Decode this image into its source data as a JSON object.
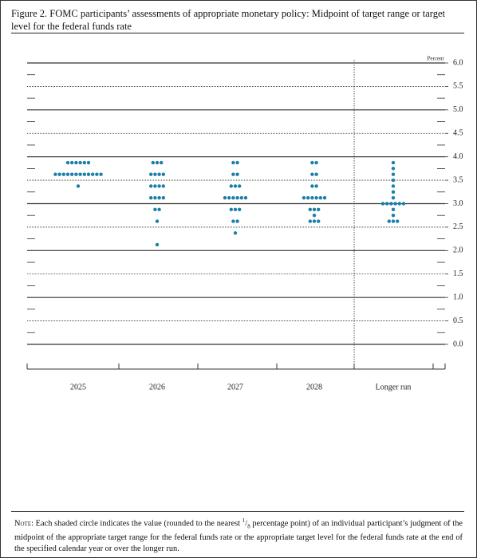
{
  "chart_data": {
    "type": "dot",
    "title": "Figure 2. FOMC participants’ assessments of appropriate monetary policy: Midpoint of target range or target level for the federal funds rate",
    "unit_label": "Percent",
    "categories": [
      "2025",
      "2026",
      "2027",
      "2028",
      "Longer run"
    ],
    "dots": [
      {
        "values": [
          3.875,
          3.625,
          3.375
        ],
        "counts": [
          6,
          12,
          1
        ]
      },
      {
        "values": [
          3.875,
          3.625,
          3.375,
          3.125,
          2.875,
          2.625,
          2.125
        ],
        "counts": [
          3,
          4,
          4,
          4,
          2,
          1,
          1
        ]
      },
      {
        "values": [
          3.875,
          3.625,
          3.375,
          3.125,
          2.875,
          2.625,
          2.375
        ],
        "counts": [
          2,
          2,
          3,
          6,
          3,
          2,
          1
        ]
      },
      {
        "values": [
          3.875,
          3.625,
          3.375,
          3.125,
          2.875,
          2.75,
          2.625
        ],
        "counts": [
          2,
          2,
          2,
          6,
          3,
          1,
          3
        ]
      },
      {
        "values": [
          3.875,
          3.75,
          3.625,
          3.5,
          3.375,
          3.25,
          3.125,
          3,
          2.875,
          2.75,
          2.625
        ],
        "counts": [
          1,
          1,
          1,
          1,
          1,
          1,
          1,
          6,
          1,
          1,
          3
        ]
      }
    ],
    "color": "#1b7fa8",
    "ylim": [
      0,
      6
    ],
    "yticks": [
      {
        "value": 0,
        "label": "0.0"
      },
      0.5,
      {
        "value": 1,
        "label": "1.0"
      },
      1.5,
      {
        "value": 2,
        "label": "2.0"
      },
      2.5,
      {
        "value": 3,
        "label": "3.0"
      },
      3.5,
      {
        "value": 4,
        "label": "4.0"
      },
      4.5,
      {
        "value": 5,
        "label": "5.0"
      },
      5.5,
      {
        "value": 6,
        "label": "6.0"
      }
    ],
    "note": {
      "label": "Note:",
      "before": "Each shaded circle indicates the value (rounded to the nearest",
      "numerator": "1",
      "denominator": "8",
      "after": "percentage point) of an individual participant’s judgment of the midpoint of the appropriate target range for the federal funds rate or the appropriate target level for the federal funds rate at the end of the specified calendar year or over the longer run."
    }
  }
}
